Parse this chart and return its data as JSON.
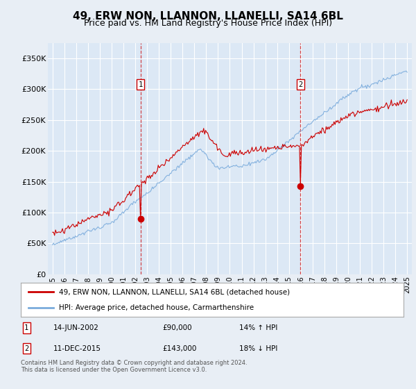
{
  "title": "49, ERW NON, LLANNON, LLANELLI, SA14 6BL",
  "subtitle": "Price paid vs. HM Land Registry's House Price Index (HPI)",
  "title_fontsize": 11,
  "subtitle_fontsize": 9,
  "background_color": "#e8eef5",
  "plot_bg_color": "#dce8f5",
  "grid_color": "#ffffff",
  "red_line_color": "#cc0000",
  "blue_line_color": "#7aabdc",
  "sale1": {
    "date_num": 2002.45,
    "price": 90000,
    "label": "1",
    "date_str": "14-JUN-2002",
    "pct": "14%",
    "dir": "↑"
  },
  "sale2": {
    "date_num": 2015.94,
    "price": 143000,
    "label": "2",
    "date_str": "11-DEC-2015",
    "pct": "18%",
    "dir": "↓"
  },
  "yticks": [
    0,
    50000,
    100000,
    150000,
    200000,
    250000,
    300000,
    350000
  ],
  "ytick_labels": [
    "£0",
    "£50K",
    "£100K",
    "£150K",
    "£200K",
    "£250K",
    "£300K",
    "£350K"
  ],
  "xmin": 1994.6,
  "xmax": 2025.4,
  "ymin": 0,
  "ymax": 375000,
  "footer": "Contains HM Land Registry data © Crown copyright and database right 2024.\nThis data is licensed under the Open Government Licence v3.0.",
  "legend1": "49, ERW NON, LLANNON, LLANELLI, SA14 6BL (detached house)",
  "legend2": "HPI: Average price, detached house, Carmarthenshire"
}
